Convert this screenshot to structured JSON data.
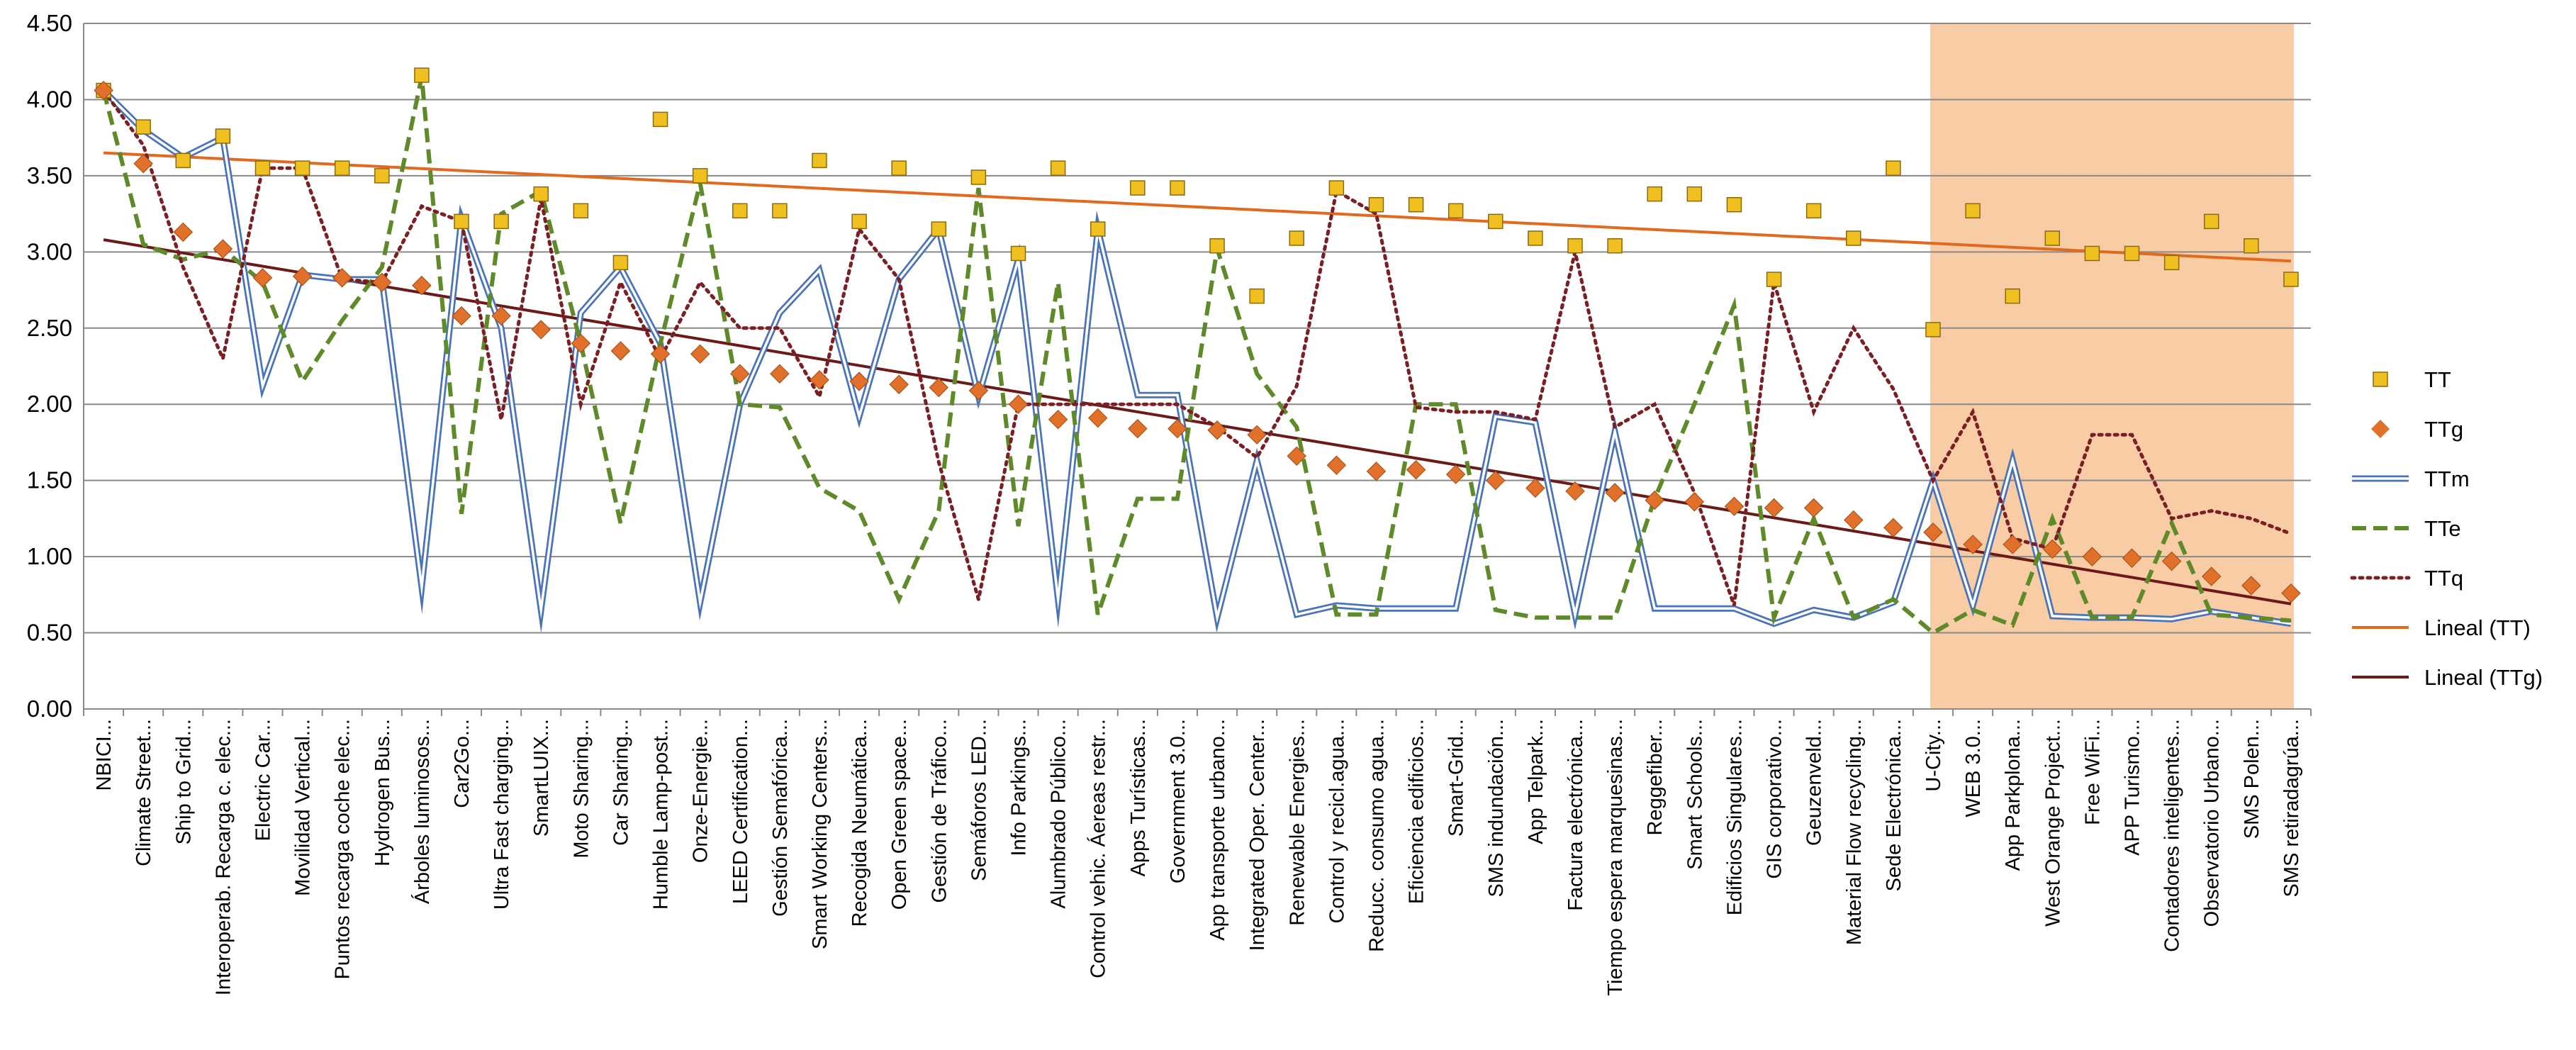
{
  "chart_data": {
    "type": "line",
    "title": "",
    "xlabel": "",
    "ylabel": "",
    "ylim": [
      0,
      4.5
    ],
    "ytick_step": 0.5,
    "grid": true,
    "legend_position": "right",
    "highlight_region": {
      "from_category": "U-City...",
      "to_category": "SMS retiradagrúa...",
      "color": "#f8cca4"
    },
    "colors": {
      "TT": "#f0c020",
      "TTg": "#e0702a",
      "TTm": "#4a74b8",
      "TTe": "#5f8a2a",
      "TTq": "#7a1f24",
      "lineal_tt": "#e06a20",
      "lineal_ttg": "#6b1a1a",
      "grid": "#8a8a8a"
    },
    "categories": [
      "NBICI...",
      "Climate Street...",
      "Ship to Grid...",
      "Interoperab. Recarga c. elec...",
      "Electric Car...",
      "Movilidad Vertical...",
      "Puntos recarga coche elec...",
      "Hydrogen Bus...",
      "Árboles luminosos...",
      "Car2Go...",
      "Ultra Fast charging...",
      "SmartLUIX...",
      "Moto Sharing...",
      "Car Sharing...",
      "Humble Lamp-post...",
      "Onze-Energie...",
      "LEED Certification...",
      "Gestión Semafórica...",
      "Smart Working Centers...",
      "Recogida Neumática...",
      "Open Green space...",
      "Gestión de Tráfico...",
      "Semáforos LED...",
      "Info Parkings...",
      "Alumbrado Público...",
      "Control vehic. Áereas restr...",
      "Apps Turísticas...",
      "Government 3.0...",
      "App transporte urbano...",
      "Integrated Oper. Center...",
      "Renewable Energies...",
      "Control y recicl.agua...",
      "Reducc. consumo agua...",
      "Eficiencia edificios...",
      "Smart-Grid...",
      "SMS indundación...",
      "App Telpark...",
      "Factura electrónica...",
      "Tiempo espera marquesinas...",
      "Reggefiber...",
      "Smart Schools...",
      "Edificios Singulares...",
      "GIS corporativo...",
      "Geuzenveld...",
      "Material Flow recycling...",
      "Sede Electrónica...",
      "U-City...",
      "WEB 3.0...",
      "App Parkplona...",
      "West Orange Project...",
      "Free WiFi...",
      "APP Turismo...",
      "Contadores inteligentes...",
      "Observatorio Urbano...",
      "SMS Polen...",
      "SMS retiradagrúa..."
    ],
    "series": [
      {
        "name": "TT",
        "style": "square-markers",
        "values": [
          4.06,
          3.82,
          3.6,
          3.76,
          3.55,
          3.55,
          3.55,
          3.5,
          4.16,
          3.2,
          3.2,
          3.38,
          3.27,
          2.93,
          3.87,
          3.5,
          3.27,
          3.27,
          3.6,
          3.2,
          3.55,
          3.15,
          3.49,
          2.99,
          3.55,
          3.15,
          3.42,
          3.42,
          3.04,
          2.71,
          3.09,
          3.42,
          3.31,
          3.31,
          3.27,
          3.2,
          3.09,
          3.04,
          3.04,
          3.38,
          3.38,
          3.31,
          2.82,
          3.27,
          3.09,
          3.55,
          2.49,
          3.27,
          2.71,
          3.09,
          2.99,
          2.99,
          2.93,
          3.2,
          3.04,
          2.82
        ]
      },
      {
        "name": "TTg",
        "style": "diamond-markers",
        "values": [
          4.06,
          3.58,
          3.13,
          3.02,
          2.83,
          2.84,
          2.83,
          2.8,
          2.78,
          2.58,
          2.58,
          2.49,
          2.4,
          2.35,
          2.33,
          2.33,
          2.2,
          2.2,
          2.16,
          2.15,
          2.13,
          2.11,
          2.09,
          2.0,
          1.9,
          1.91,
          1.84,
          1.84,
          1.83,
          1.8,
          1.66,
          1.6,
          1.56,
          1.57,
          1.54,
          1.5,
          1.45,
          1.43,
          1.42,
          1.37,
          1.36,
          1.33,
          1.32,
          1.32,
          1.24,
          1.19,
          1.16,
          1.08,
          1.08,
          1.05,
          1.0,
          0.99,
          0.97,
          0.87,
          0.81,
          0.76
        ]
      },
      {
        "name": "TTm",
        "style": "double-line",
        "values": [
          4.06,
          3.8,
          3.62,
          3.75,
          2.12,
          2.85,
          2.82,
          2.82,
          0.8,
          3.22,
          2.5,
          0.65,
          2.6,
          2.9,
          2.4,
          0.7,
          2.0,
          2.6,
          2.88,
          1.92,
          2.82,
          3.15,
          2.05,
          2.95,
          0.72,
          3.15,
          2.06,
          2.06,
          0.6,
          1.63,
          0.62,
          0.68,
          0.66,
          0.66,
          0.66,
          1.92,
          1.88,
          0.62,
          1.82,
          0.66,
          0.66,
          0.66,
          0.56,
          0.65,
          0.6,
          0.7,
          1.5,
          0.68,
          1.63,
          0.61,
          0.6,
          0.6,
          0.59,
          0.64,
          0.6,
          0.56
        ]
      },
      {
        "name": "TTe",
        "style": "dashed",
        "values": [
          4.06,
          3.05,
          2.95,
          3.02,
          2.8,
          2.15,
          2.55,
          2.9,
          4.15,
          1.28,
          3.25,
          3.4,
          2.4,
          1.22,
          2.4,
          3.45,
          2.0,
          1.98,
          1.45,
          1.3,
          0.72,
          1.3,
          3.42,
          1.2,
          2.8,
          0.62,
          1.38,
          1.38,
          3.02,
          2.2,
          1.85,
          0.62,
          0.62,
          2.0,
          2.0,
          0.65,
          0.6,
          0.6,
          0.6,
          1.38,
          2.0,
          2.65,
          0.6,
          1.25,
          0.6,
          0.72,
          0.5,
          0.65,
          0.55,
          1.25,
          0.6,
          0.6,
          1.22,
          0.62,
          0.6,
          0.58
        ]
      },
      {
        "name": "TTq",
        "style": "dotted",
        "values": [
          4.06,
          3.7,
          2.9,
          2.3,
          3.55,
          3.55,
          2.82,
          2.8,
          3.3,
          3.2,
          1.9,
          3.35,
          2.0,
          2.8,
          2.3,
          2.8,
          2.5,
          2.5,
          2.05,
          3.15,
          2.82,
          1.62,
          0.72,
          2.0,
          2.0,
          2.0,
          2.0,
          2.0,
          1.85,
          1.65,
          2.12,
          3.4,
          3.25,
          1.98,
          1.95,
          1.95,
          1.9,
          3.0,
          1.85,
          2.0,
          1.42,
          0.68,
          2.8,
          1.95,
          2.5,
          2.1,
          1.5,
          1.95,
          1.12,
          1.05,
          1.8,
          1.8,
          1.25,
          1.3,
          1.25,
          1.15
        ]
      },
      {
        "name": "Lineal (TT)",
        "style": "trend",
        "start": 3.65,
        "end": 2.94
      },
      {
        "name": "Lineal (TTg)",
        "style": "trend",
        "start": 3.08,
        "end": 0.69
      }
    ]
  }
}
